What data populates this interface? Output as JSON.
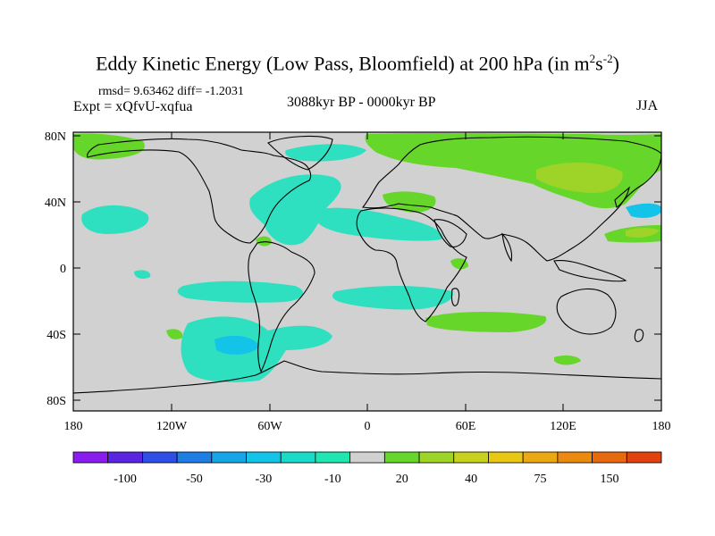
{
  "title": {
    "main": "Eddy Kinetic Energy (Low Pass, Bloomfield) at 200 hPa (in m",
    "sup1": "2",
    "mid": "s",
    "sup2": "-2",
    "end": ")"
  },
  "stats": {
    "rmsd_label": "rmsd=",
    "rmsd": "9.63462",
    "diff_label": "diff=",
    "diff": "-1.2031"
  },
  "expt": "Expt = xQfvU-xqfua",
  "period": "3088kyr BP - 0000kyr BP",
  "season": "JJA",
  "axes": {
    "lat_ticks": [
      "80N",
      "40N",
      "0",
      "40S",
      "80S"
    ],
    "lon_ticks": [
      "180",
      "120W",
      "60W",
      "0",
      "60E",
      "120E",
      "180"
    ]
  },
  "colorbar": {
    "colors": [
      "#8a1cf0",
      "#5a25e0",
      "#2f4ee6",
      "#1f7ee6",
      "#16a6e8",
      "#14c4e8",
      "#18dcc8",
      "#20e6b0",
      "#d1d1d1",
      "#66d62a",
      "#9ed428",
      "#c8d21e",
      "#e8c812",
      "#eca812",
      "#ec8a10",
      "#e86a0e",
      "#e2420e"
    ],
    "labels": [
      "-100",
      "-50",
      "-30",
      "-10",
      "20",
      "40",
      "75",
      "150"
    ]
  },
  "map_fill_colors": {
    "background": "#d1d1d1",
    "teal": "#2ee0c0",
    "cyan": "#14c4e8",
    "green": "#66d62a",
    "olive": "#9ed428"
  }
}
